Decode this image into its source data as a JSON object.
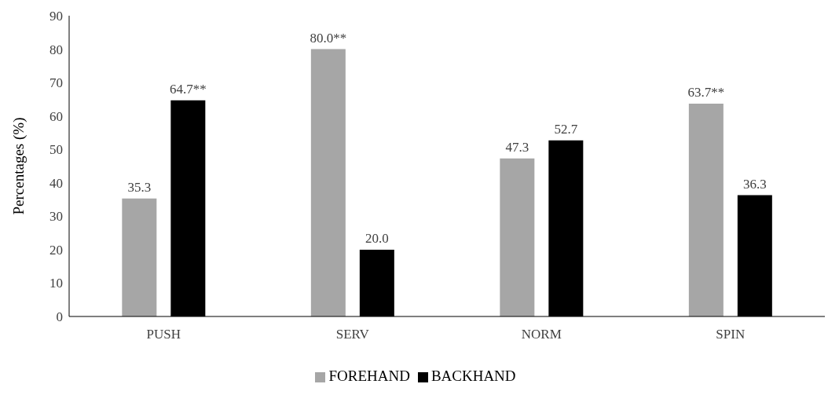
{
  "chart_data": {
    "type": "bar",
    "ylabel": "Percentages (%)",
    "categories": [
      "PUSH",
      "SERV",
      "NORM",
      "SPIN"
    ],
    "series": [
      {
        "name": "FOREHAND",
        "color": "#a6a6a6",
        "values": [
          35.3,
          80.0,
          47.3,
          63.7
        ],
        "value_labels": [
          "35.3",
          "80.0**",
          "47.3",
          "63.7**"
        ]
      },
      {
        "name": "BACKHAND",
        "color": "#000000",
        "values": [
          64.7,
          20.0,
          52.7,
          36.3
        ],
        "value_labels": [
          "64.7**",
          "20.0",
          "52.7",
          "36.3"
        ]
      }
    ],
    "ylim": [
      0,
      90
    ],
    "yticks": [
      0,
      10,
      20,
      30,
      40,
      50,
      60,
      70,
      80,
      90
    ],
    "grid": false,
    "legend": "bottom"
  }
}
